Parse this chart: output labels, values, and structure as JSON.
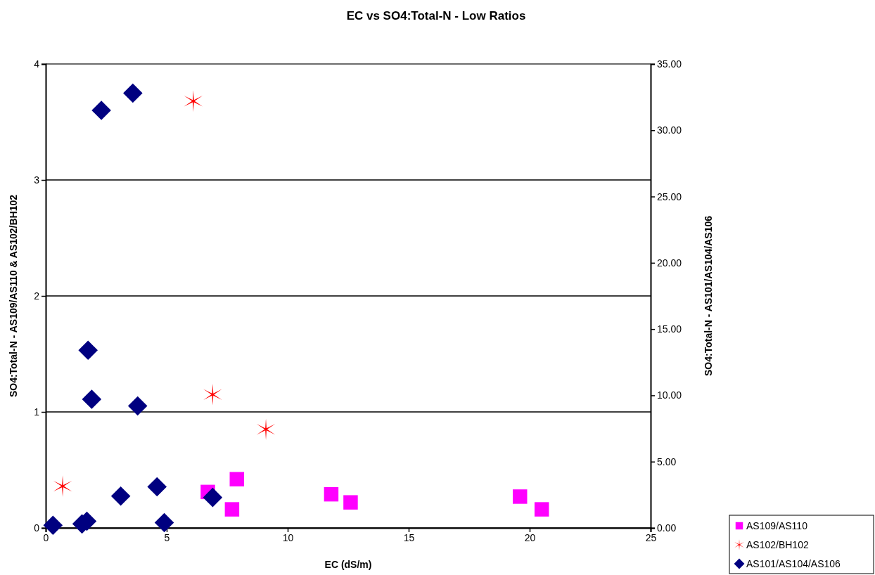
{
  "chart_data": {
    "type": "scatter",
    "title": "EC vs SO4:Total-N - Low Ratios",
    "xlabel": "EC (dS/m)",
    "ylabel": "SO4:Total-N - AS109/AS110 & AS102/BH102",
    "y2label": "SO4:Total-N - AS101/AS104/AS106",
    "xlim": [
      0,
      25
    ],
    "xticks": [
      0,
      5,
      10,
      15,
      20,
      25
    ],
    "ylim": [
      0,
      4
    ],
    "yticks": [
      0,
      1,
      2,
      3,
      4
    ],
    "y2lim": [
      0,
      35
    ],
    "y2ticks": [
      {
        "value": 0,
        "label": "0.00"
      },
      {
        "value": 5,
        "label": "5.00"
      },
      {
        "value": 10,
        "label": "10.00"
      },
      {
        "value": 15,
        "label": "15.00"
      },
      {
        "value": 20,
        "label": "20.00"
      },
      {
        "value": 25,
        "label": "25.00"
      },
      {
        "value": 30,
        "label": "30.00"
      },
      {
        "value": 35,
        "label": "35.00"
      }
    ],
    "grid": "y",
    "legend": "bottom right",
    "series": [
      {
        "name": "AS109/AS110",
        "color": "#ff00ff",
        "marker": "square",
        "x": [
          6.7,
          7.9,
          7.7,
          11.8,
          12.6,
          19.6,
          20.5
        ],
        "values": [
          0.31,
          0.42,
          0.16,
          0.29,
          0.22,
          0.27,
          0.16
        ]
      },
      {
        "name": "AS102/BH102",
        "color": "#ff0000",
        "marker": "cross",
        "x": [
          0.7,
          6.1,
          6.9,
          9.1
        ],
        "values": [
          0.36,
          3.68,
          1.15,
          0.85
        ]
      },
      {
        "name": "AS101/AS104/AS106",
        "color": "#000080",
        "marker": "diamond",
        "axis": "y2",
        "x": [
          0.3,
          1.5,
          1.7,
          1.75,
          1.9,
          2.3,
          3.1,
          3.6,
          3.8,
          4.6,
          4.9,
          6.9
        ],
        "values": [
          0.2,
          0.3,
          0.5,
          13.4,
          9.7,
          31.5,
          2.4,
          32.8,
          9.2,
          3.1,
          0.4,
          2.3
        ]
      }
    ]
  }
}
